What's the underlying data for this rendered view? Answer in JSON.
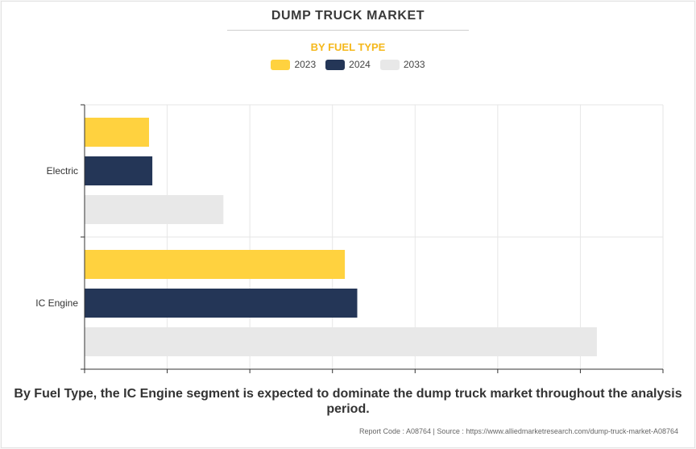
{
  "title": "DUMP TRUCK MARKET",
  "subtitle": "BY FUEL TYPE",
  "caption": "By Fuel Type, the IC Engine segment is expected to dominate the dump truck market throughout the analysis period.",
  "footer": "Report Code : A08764  |  Source : https://www.alliedmarketresearch.com/dump-truck-market-A08764",
  "chart_data": {
    "type": "bar",
    "orientation": "horizontal",
    "title": "DUMP TRUCK MARKET",
    "subtitle": "BY FUEL TYPE",
    "categories": [
      "Electric",
      "IC Engine"
    ],
    "series": [
      {
        "name": "2023",
        "color": "#ffd23f",
        "values": [
          0.78,
          3.15
        ]
      },
      {
        "name": "2024",
        "color": "#243657",
        "values": [
          0.82,
          3.3
        ]
      },
      {
        "name": "2033",
        "color": "#e8e8e8",
        "values": [
          1.68,
          6.2
        ]
      }
    ],
    "xlim": [
      0,
      7
    ],
    "x_ticks": 7,
    "x_tick_labels_shown": false,
    "grid": true,
    "legend_position": "top-center"
  }
}
